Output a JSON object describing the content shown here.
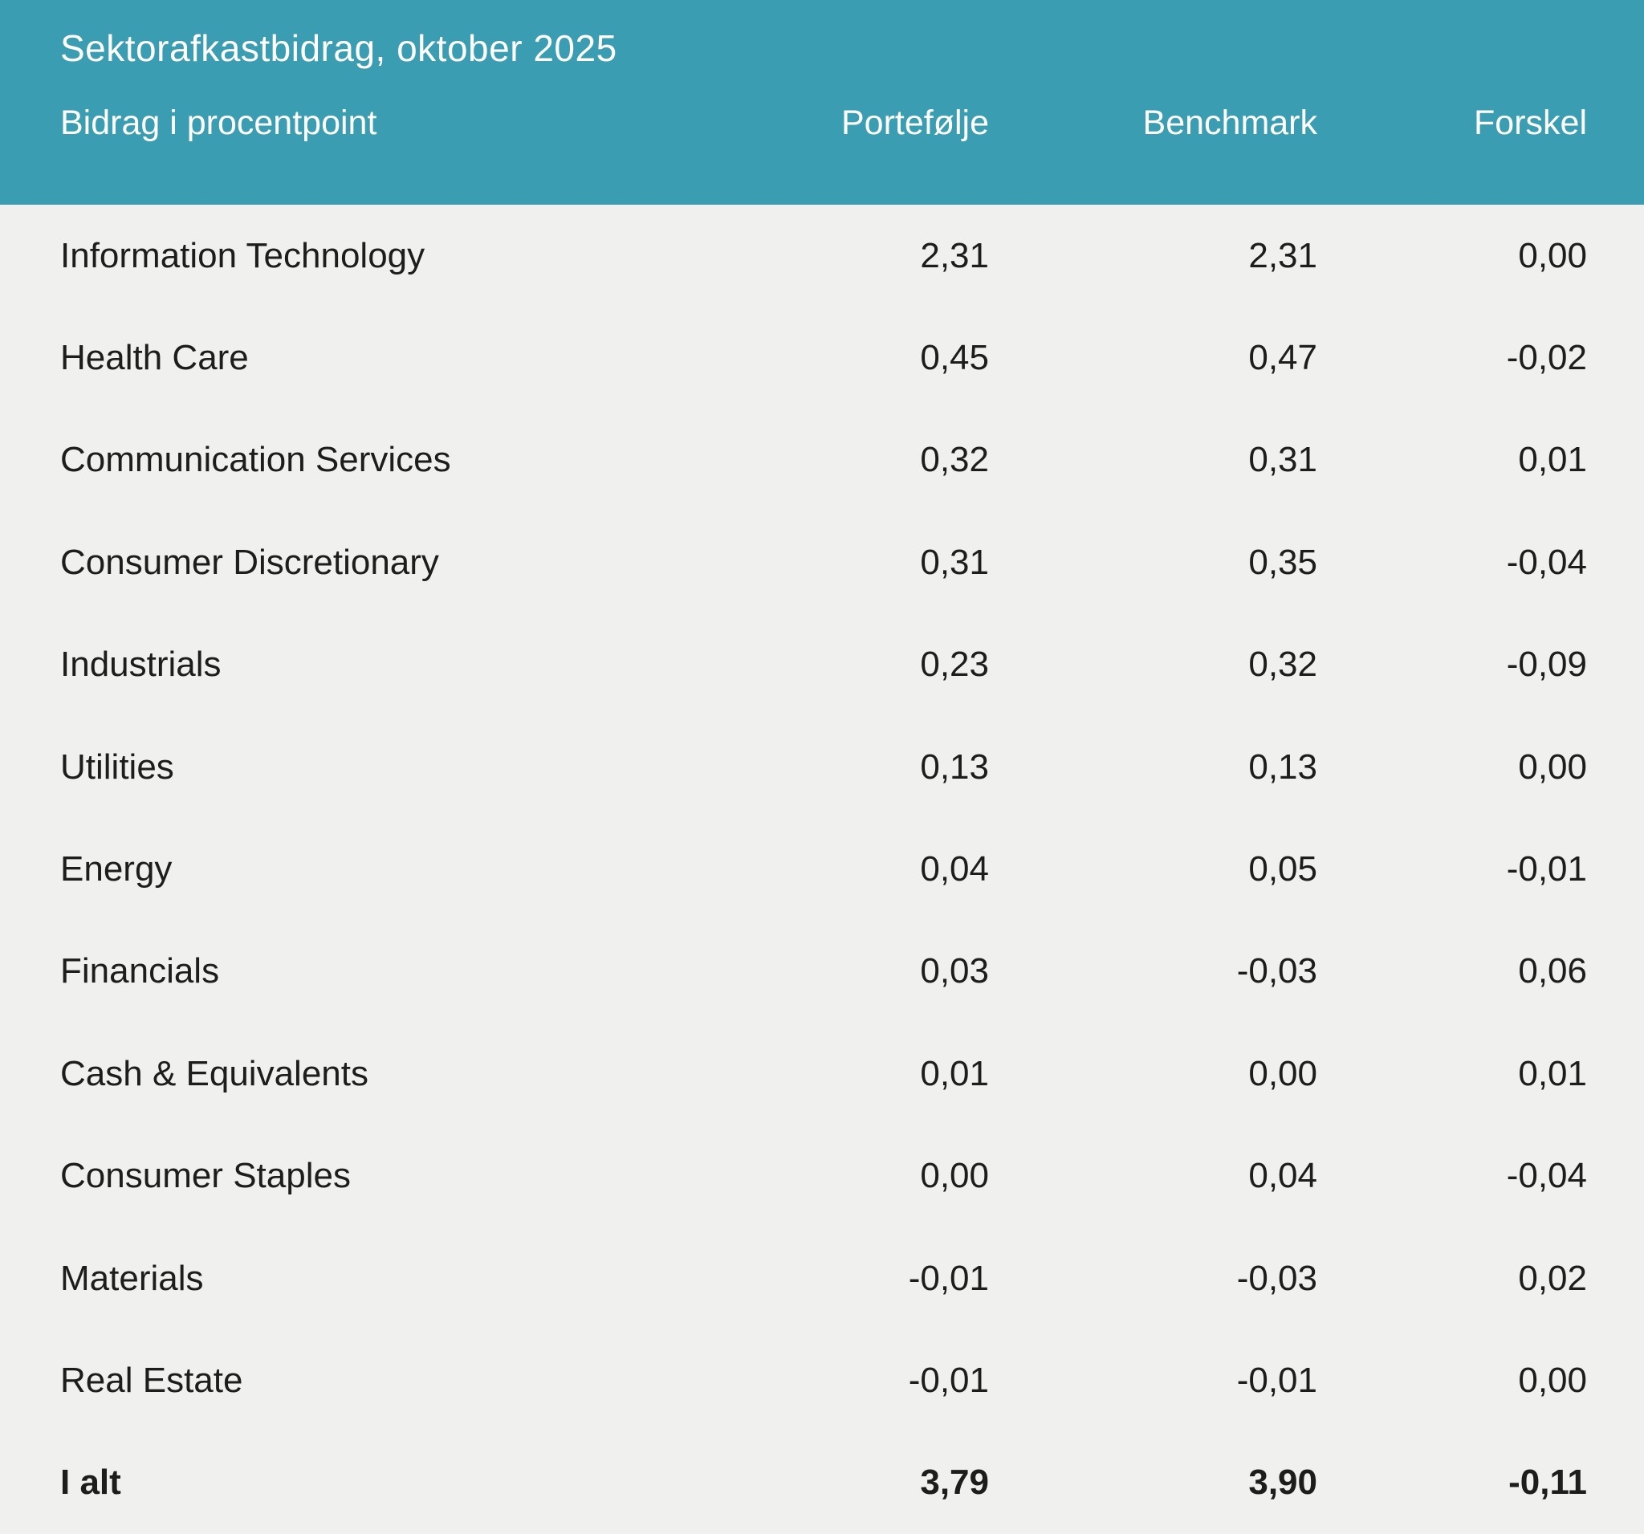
{
  "header": {
    "title": "Sektorafkastbidrag, oktober 2025",
    "columns": {
      "label": "Bidrag i procentpoint",
      "portfolio": "Portefølje",
      "benchmark": "Benchmark",
      "difference": "Forskel"
    }
  },
  "table": {
    "rows": [
      {
        "sector": "Information Technology",
        "portfolio": "2,31",
        "benchmark": "2,31",
        "difference": "0,00"
      },
      {
        "sector": "Health Care",
        "portfolio": "0,45",
        "benchmark": "0,47",
        "difference": "-0,02"
      },
      {
        "sector": "Communication Services",
        "portfolio": "0,32",
        "benchmark": "0,31",
        "difference": "0,01"
      },
      {
        "sector": "Consumer Discretionary",
        "portfolio": "0,31",
        "benchmark": "0,35",
        "difference": "-0,04"
      },
      {
        "sector": "Industrials",
        "portfolio": "0,23",
        "benchmark": "0,32",
        "difference": "-0,09"
      },
      {
        "sector": "Utilities",
        "portfolio": "0,13",
        "benchmark": "0,13",
        "difference": "0,00"
      },
      {
        "sector": "Energy",
        "portfolio": "0,04",
        "benchmark": "0,05",
        "difference": "-0,01"
      },
      {
        "sector": "Financials",
        "portfolio": "0,03",
        "benchmark": "-0,03",
        "difference": "0,06"
      },
      {
        "sector": "Cash & Equivalents",
        "portfolio": "0,01",
        "benchmark": "0,00",
        "difference": "0,01"
      },
      {
        "sector": "Consumer Staples",
        "portfolio": "0,00",
        "benchmark": "0,04",
        "difference": "-0,04"
      },
      {
        "sector": "Materials",
        "portfolio": "-0,01",
        "benchmark": "-0,03",
        "difference": "0,02"
      },
      {
        "sector": "Real Estate",
        "portfolio": "-0,01",
        "benchmark": "-0,01",
        "difference": "0,00"
      }
    ],
    "total": {
      "sector": "I alt",
      "portfolio": "3,79",
      "benchmark": "3,90",
      "difference": "-0,11"
    }
  },
  "colors": {
    "header_bg": "#3A9DB1",
    "body_bg": "#F0F0EF",
    "header_text": "#FFFFFF",
    "body_text": "#1D1D1B"
  },
  "chart_data": {
    "type": "table",
    "title": "Sektorafkastbidrag, oktober 2025",
    "unit": "procentpoint",
    "columns": [
      "Bidrag i procentpoint",
      "Portefølje",
      "Benchmark",
      "Forskel"
    ],
    "rows": [
      [
        "Information Technology",
        2.31,
        2.31,
        0.0
      ],
      [
        "Health Care",
        0.45,
        0.47,
        -0.02
      ],
      [
        "Communication Services",
        0.32,
        0.31,
        0.01
      ],
      [
        "Consumer Discretionary",
        0.31,
        0.35,
        -0.04
      ],
      [
        "Industrials",
        0.23,
        0.32,
        -0.09
      ],
      [
        "Utilities",
        0.13,
        0.13,
        0.0
      ],
      [
        "Energy",
        0.04,
        0.05,
        -0.01
      ],
      [
        "Financials",
        0.03,
        -0.03,
        0.06
      ],
      [
        "Cash & Equivalents",
        0.01,
        0.0,
        0.01
      ],
      [
        "Consumer Staples",
        0.0,
        0.04,
        -0.04
      ],
      [
        "Materials",
        -0.01,
        -0.03,
        0.02
      ],
      [
        "Real Estate",
        -0.01,
        -0.01,
        0.0
      ],
      [
        "I alt",
        3.79,
        3.9,
        -0.11
      ]
    ]
  }
}
